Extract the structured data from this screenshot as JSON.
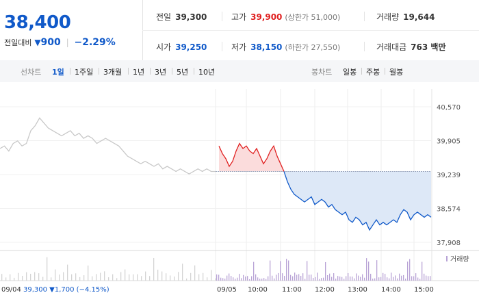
{
  "quote": {
    "price": "38,400",
    "change_label": "전일대비",
    "change_amount": "900",
    "change_pct": "−2.29%"
  },
  "stats": {
    "prev_close": {
      "label": "전일",
      "value": "39,300"
    },
    "high": {
      "label": "고가",
      "value": "39,900",
      "sub": "(상한가 51,000)"
    },
    "volume": {
      "label": "거래량",
      "value": "19,644"
    },
    "open": {
      "label": "시가",
      "value": "39,250"
    },
    "low": {
      "label": "저가",
      "value": "38,150",
      "sub": "(하한가 27,550)"
    },
    "amount": {
      "label": "거래대금",
      "value": "763 백만"
    }
  },
  "colors": {
    "up": "#e02020",
    "down": "#1059c9",
    "up_fill": "#fbdcdc",
    "down_fill": "#dde8f7",
    "prev_line": "#c8c8c8",
    "volume": "#b8a3d6"
  },
  "tabs": {
    "line_label": "선차트",
    "line": [
      "1일",
      "1주일",
      "3개월",
      "1년",
      "3년",
      "5년",
      "10년"
    ],
    "active": "1일",
    "candle_label": "봉차트",
    "candle": [
      "일봉",
      "주봉",
      "월봉"
    ]
  },
  "chart_data": {
    "type": "line",
    "ylim": [
      37908,
      40570
    ],
    "y_ticks": [
      "40,570",
      "39,905",
      "39,239",
      "38,574",
      "37,908"
    ],
    "baseline": 39300,
    "volume_label": "거래량",
    "prev_day": {
      "date": "09/04",
      "summary": "39,300 ▼1,700 (−4.15%)",
      "values": [
        39750,
        39800,
        39700,
        39850,
        39900,
        39800,
        39850,
        40100,
        40200,
        40350,
        40250,
        40150,
        40100,
        40050,
        40000,
        40050,
        40100,
        40000,
        40050,
        39950,
        40000,
        39950,
        39850,
        39900,
        39950,
        39900,
        39850,
        39800,
        39700,
        39600,
        39550,
        39500,
        39450,
        39500,
        39450,
        39400,
        39450,
        39350,
        39400,
        39350,
        39300,
        39350,
        39300,
        39250,
        39300,
        39350,
        39300,
        39350,
        39300,
        39300
      ]
    },
    "today": {
      "date": "09/05",
      "times": [
        "10:00",
        "11:00",
        "12:00",
        "13:00",
        "14:00",
        "15:00"
      ],
      "values": [
        39800,
        39650,
        39550,
        39400,
        39500,
        39700,
        39850,
        39750,
        39800,
        39700,
        39650,
        39750,
        39600,
        39450,
        39550,
        39700,
        39800,
        39600,
        39450,
        39300,
        39100,
        38950,
        38850,
        38800,
        38750,
        38700,
        38750,
        38800,
        38650,
        38700,
        38750,
        38700,
        38600,
        38650,
        38550,
        38500,
        38450,
        38500,
        38350,
        38300,
        38400,
        38350,
        38250,
        38300,
        38150,
        38250,
        38350,
        38250,
        38300,
        38250,
        38300,
        38350,
        38300,
        38450,
        38550,
        38500,
        38350,
        38450,
        38500,
        38450,
        38400,
        38450,
        38400
      ]
    }
  }
}
